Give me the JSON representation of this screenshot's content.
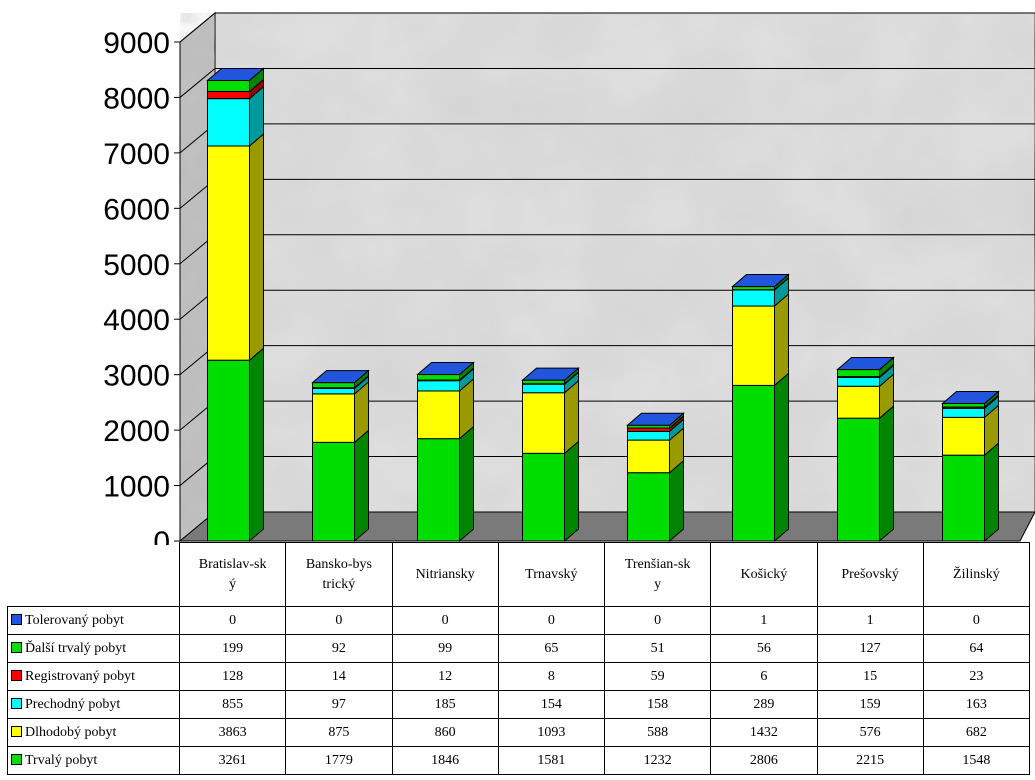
{
  "chart_data": {
    "type": "bar",
    "stacked": true,
    "three_d": true,
    "background_image": "map",
    "grid": true,
    "ylim": [
      0,
      9000
    ],
    "yticks": [
      "0",
      "1000",
      "2000",
      "3000",
      "4000",
      "5000",
      "6000",
      "7000",
      "8000",
      "9000"
    ],
    "categories": [
      "Bratislav-ský",
      "Bansko-bystrický",
      "Nitriansky",
      "Trnavský",
      "Trenšian-sky",
      "Košický",
      "Prešovský",
      "Žilinský"
    ],
    "series": [
      {
        "name": "Trvalý pobyt",
        "color": "#00dd00",
        "values": [
          3261,
          1779,
          1846,
          1581,
          1232,
          2806,
          2215,
          1548
        ]
      },
      {
        "name": "Dlhodobý pobyt",
        "color": "#ffff00",
        "values": [
          3863,
          875,
          860,
          1093,
          588,
          1432,
          576,
          682
        ]
      },
      {
        "name": "Prechodný pobyt",
        "color": "#00ffff",
        "values": [
          855,
          97,
          185,
          154,
          158,
          289,
          159,
          163
        ]
      },
      {
        "name": "Registrovaný pobyt",
        "color": "#ff0000",
        "values": [
          128,
          14,
          12,
          8,
          59,
          6,
          15,
          23
        ]
      },
      {
        "name": "Ďalší trvalý pobyt",
        "color": "#00dd00",
        "values": [
          199,
          92,
          99,
          65,
          51,
          56,
          127,
          64
        ]
      },
      {
        "name": "Tolerovaný pobyt",
        "color": "#2255dd",
        "values": [
          0,
          0,
          0,
          0,
          0,
          1,
          1,
          0
        ]
      }
    ],
    "table_row_order": [
      "Tolerovaný pobyt",
      "Ďalší trvalý pobyt",
      "Registrovaný pobyt",
      "Prechodný pobyt",
      "Dlhodobý pobyt",
      "Trvalý pobyt"
    ]
  }
}
